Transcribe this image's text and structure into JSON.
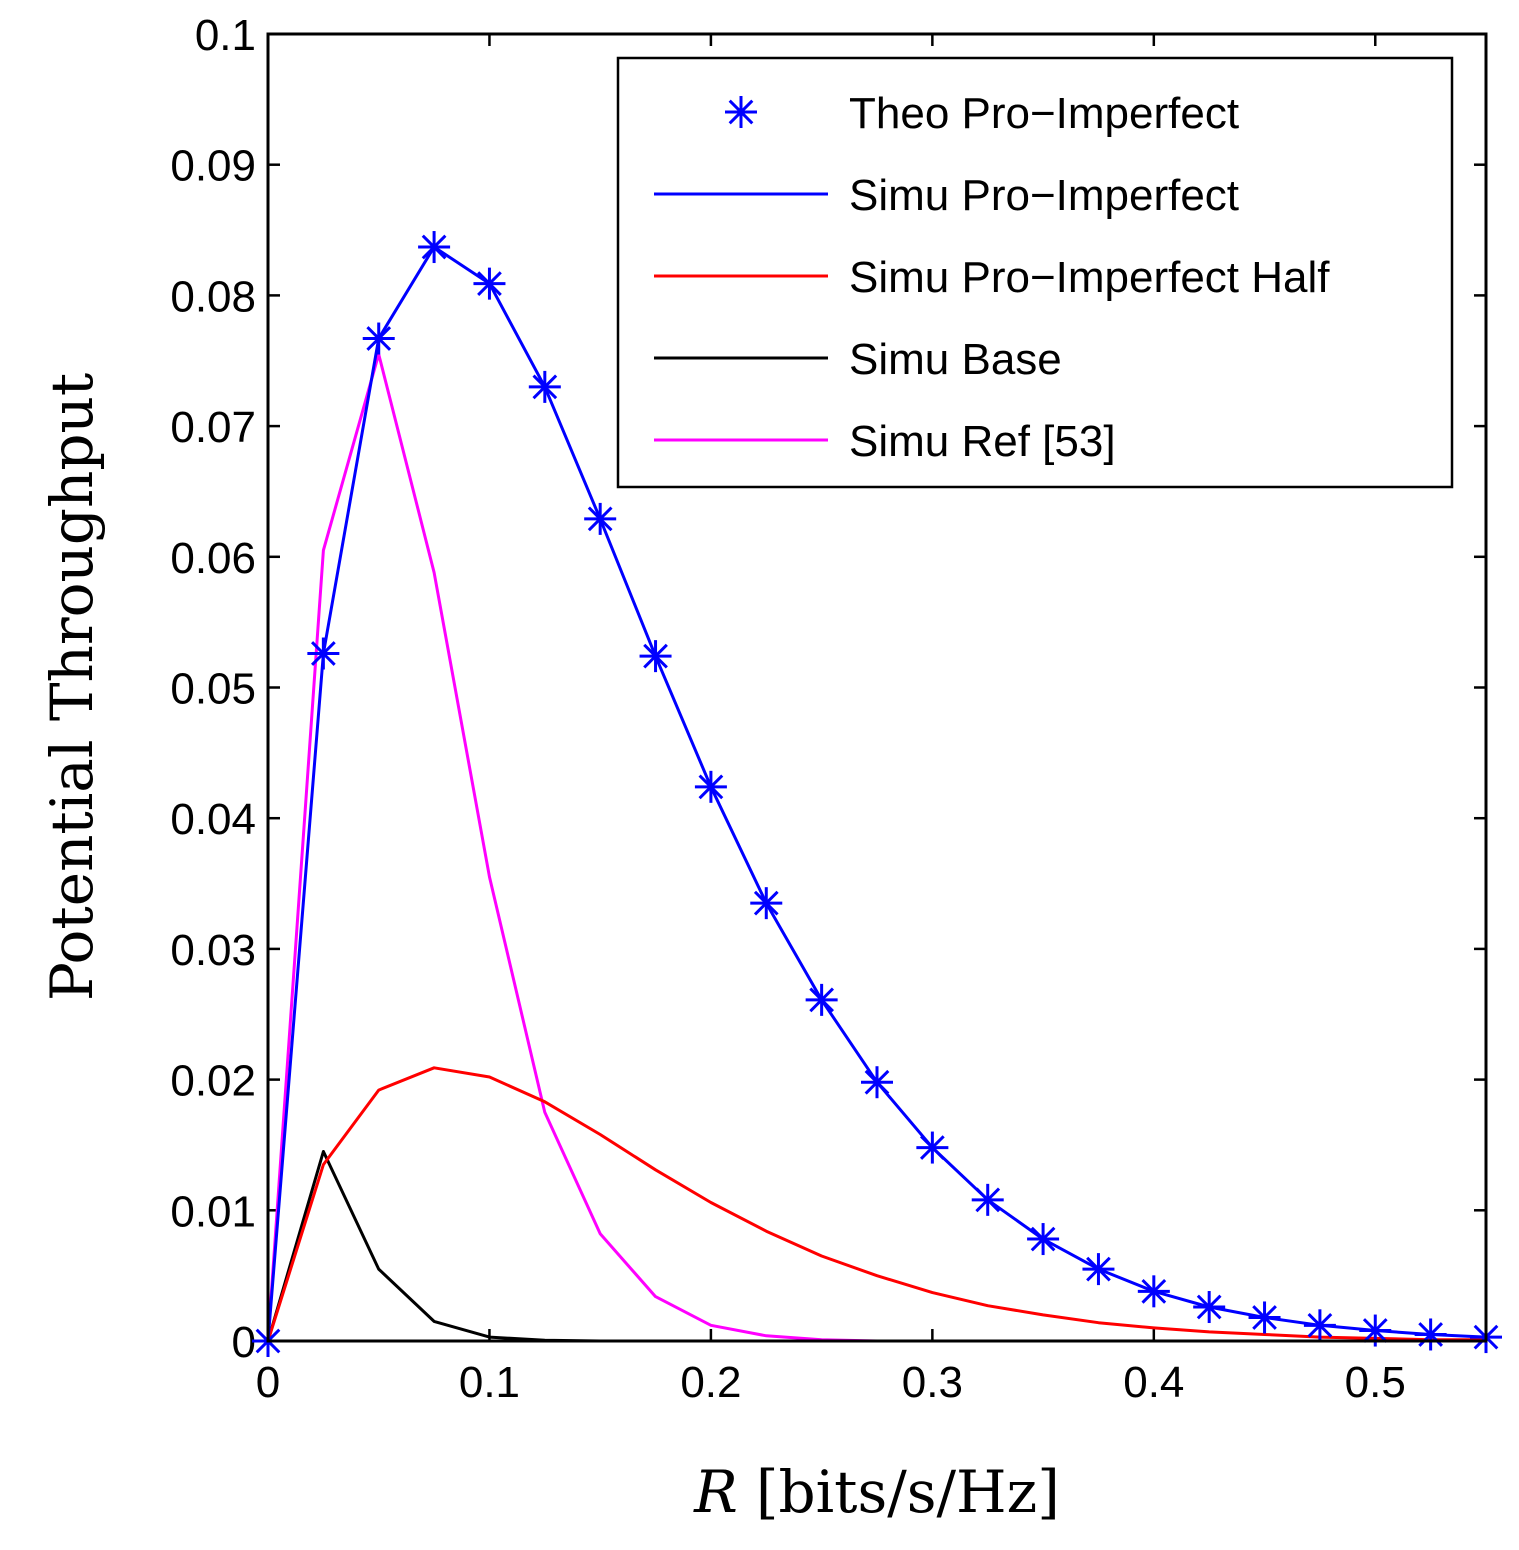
{
  "chart_data": {
    "type": "line",
    "title": "",
    "xlabel_var": "R",
    "xlabel_unit": "[bits/s/Hz]",
    "ylabel": "Potential Throughput",
    "xlim": [
      0,
      0.55
    ],
    "ylim": [
      0,
      0.1
    ],
    "x_ticks": [
      0,
      0.1,
      0.2,
      0.3,
      0.4,
      0.5
    ],
    "x_tick_labels": [
      "0",
      "0.1",
      "0.2",
      "0.3",
      "0.4",
      "0.5"
    ],
    "y_ticks": [
      0,
      0.01,
      0.02,
      0.03,
      0.04,
      0.05,
      0.06,
      0.07,
      0.08,
      0.09,
      0.1
    ],
    "y_tick_labels": [
      "0",
      "0.01",
      "0.02",
      "0.03",
      "0.04",
      "0.05",
      "0.06",
      "0.07",
      "0.08",
      "0.09",
      "0.1"
    ],
    "grid": false,
    "legend_position": "top-right",
    "x": [
      0,
      0.025,
      0.05,
      0.075,
      0.1,
      0.125,
      0.15,
      0.175,
      0.2,
      0.225,
      0.25,
      0.275,
      0.3,
      0.325,
      0.35,
      0.375,
      0.4,
      0.425,
      0.45,
      0.475,
      0.5,
      0.525,
      0.55
    ],
    "series": [
      {
        "name": "Theo Pro−Imperfect",
        "style": "marker",
        "marker": "asterisk",
        "color": "#0000ff",
        "values": [
          0,
          0.0526,
          0.0767,
          0.0837,
          0.0809,
          0.073,
          0.0629,
          0.0524,
          0.0424,
          0.0335,
          0.0261,
          0.0198,
          0.0148,
          0.0108,
          0.0078,
          0.0055,
          0.0038,
          0.0026,
          0.0018,
          0.0012,
          0.0008,
          0.0005,
          0.0003
        ]
      },
      {
        "name": "Simu Pro−Imperfect",
        "style": "line",
        "color": "#0000ff",
        "values": [
          0,
          0.0526,
          0.0767,
          0.0837,
          0.0809,
          0.073,
          0.0629,
          0.0524,
          0.0424,
          0.0335,
          0.0261,
          0.0198,
          0.0148,
          0.0108,
          0.0078,
          0.0055,
          0.0038,
          0.0026,
          0.0018,
          0.0012,
          0.0008,
          0.0005,
          0.0003
        ]
      },
      {
        "name": "Simu Pro−Imperfect Half",
        "style": "line",
        "color": "#ff0000",
        "values": [
          0,
          0.0135,
          0.0192,
          0.0209,
          0.0202,
          0.0183,
          0.0158,
          0.0131,
          0.0106,
          0.0084,
          0.0065,
          0.005,
          0.0037,
          0.0027,
          0.002,
          0.0014,
          0.001,
          0.0007,
          0.0005,
          0.0003,
          0.0002,
          0.0001,
          0.0001
        ]
      },
      {
        "name": "Simu Base",
        "style": "line",
        "color": "#000000",
        "values": [
          0,
          0.0145,
          0.0055,
          0.0015,
          0.0003,
          5e-05,
          0,
          0,
          0,
          0,
          0,
          0,
          0,
          0,
          0,
          0,
          0,
          0,
          0,
          0,
          0,
          0,
          0
        ]
      },
      {
        "name": "Simu Ref [53]",
        "style": "line",
        "color": "#ff00ff",
        "values": [
          0,
          0.0605,
          0.0755,
          0.0588,
          0.0355,
          0.0175,
          0.0082,
          0.0034,
          0.0012,
          0.0004,
          0.0001,
          0,
          0,
          0,
          0,
          0,
          0,
          0,
          0,
          0,
          0,
          0,
          0
        ]
      }
    ]
  }
}
